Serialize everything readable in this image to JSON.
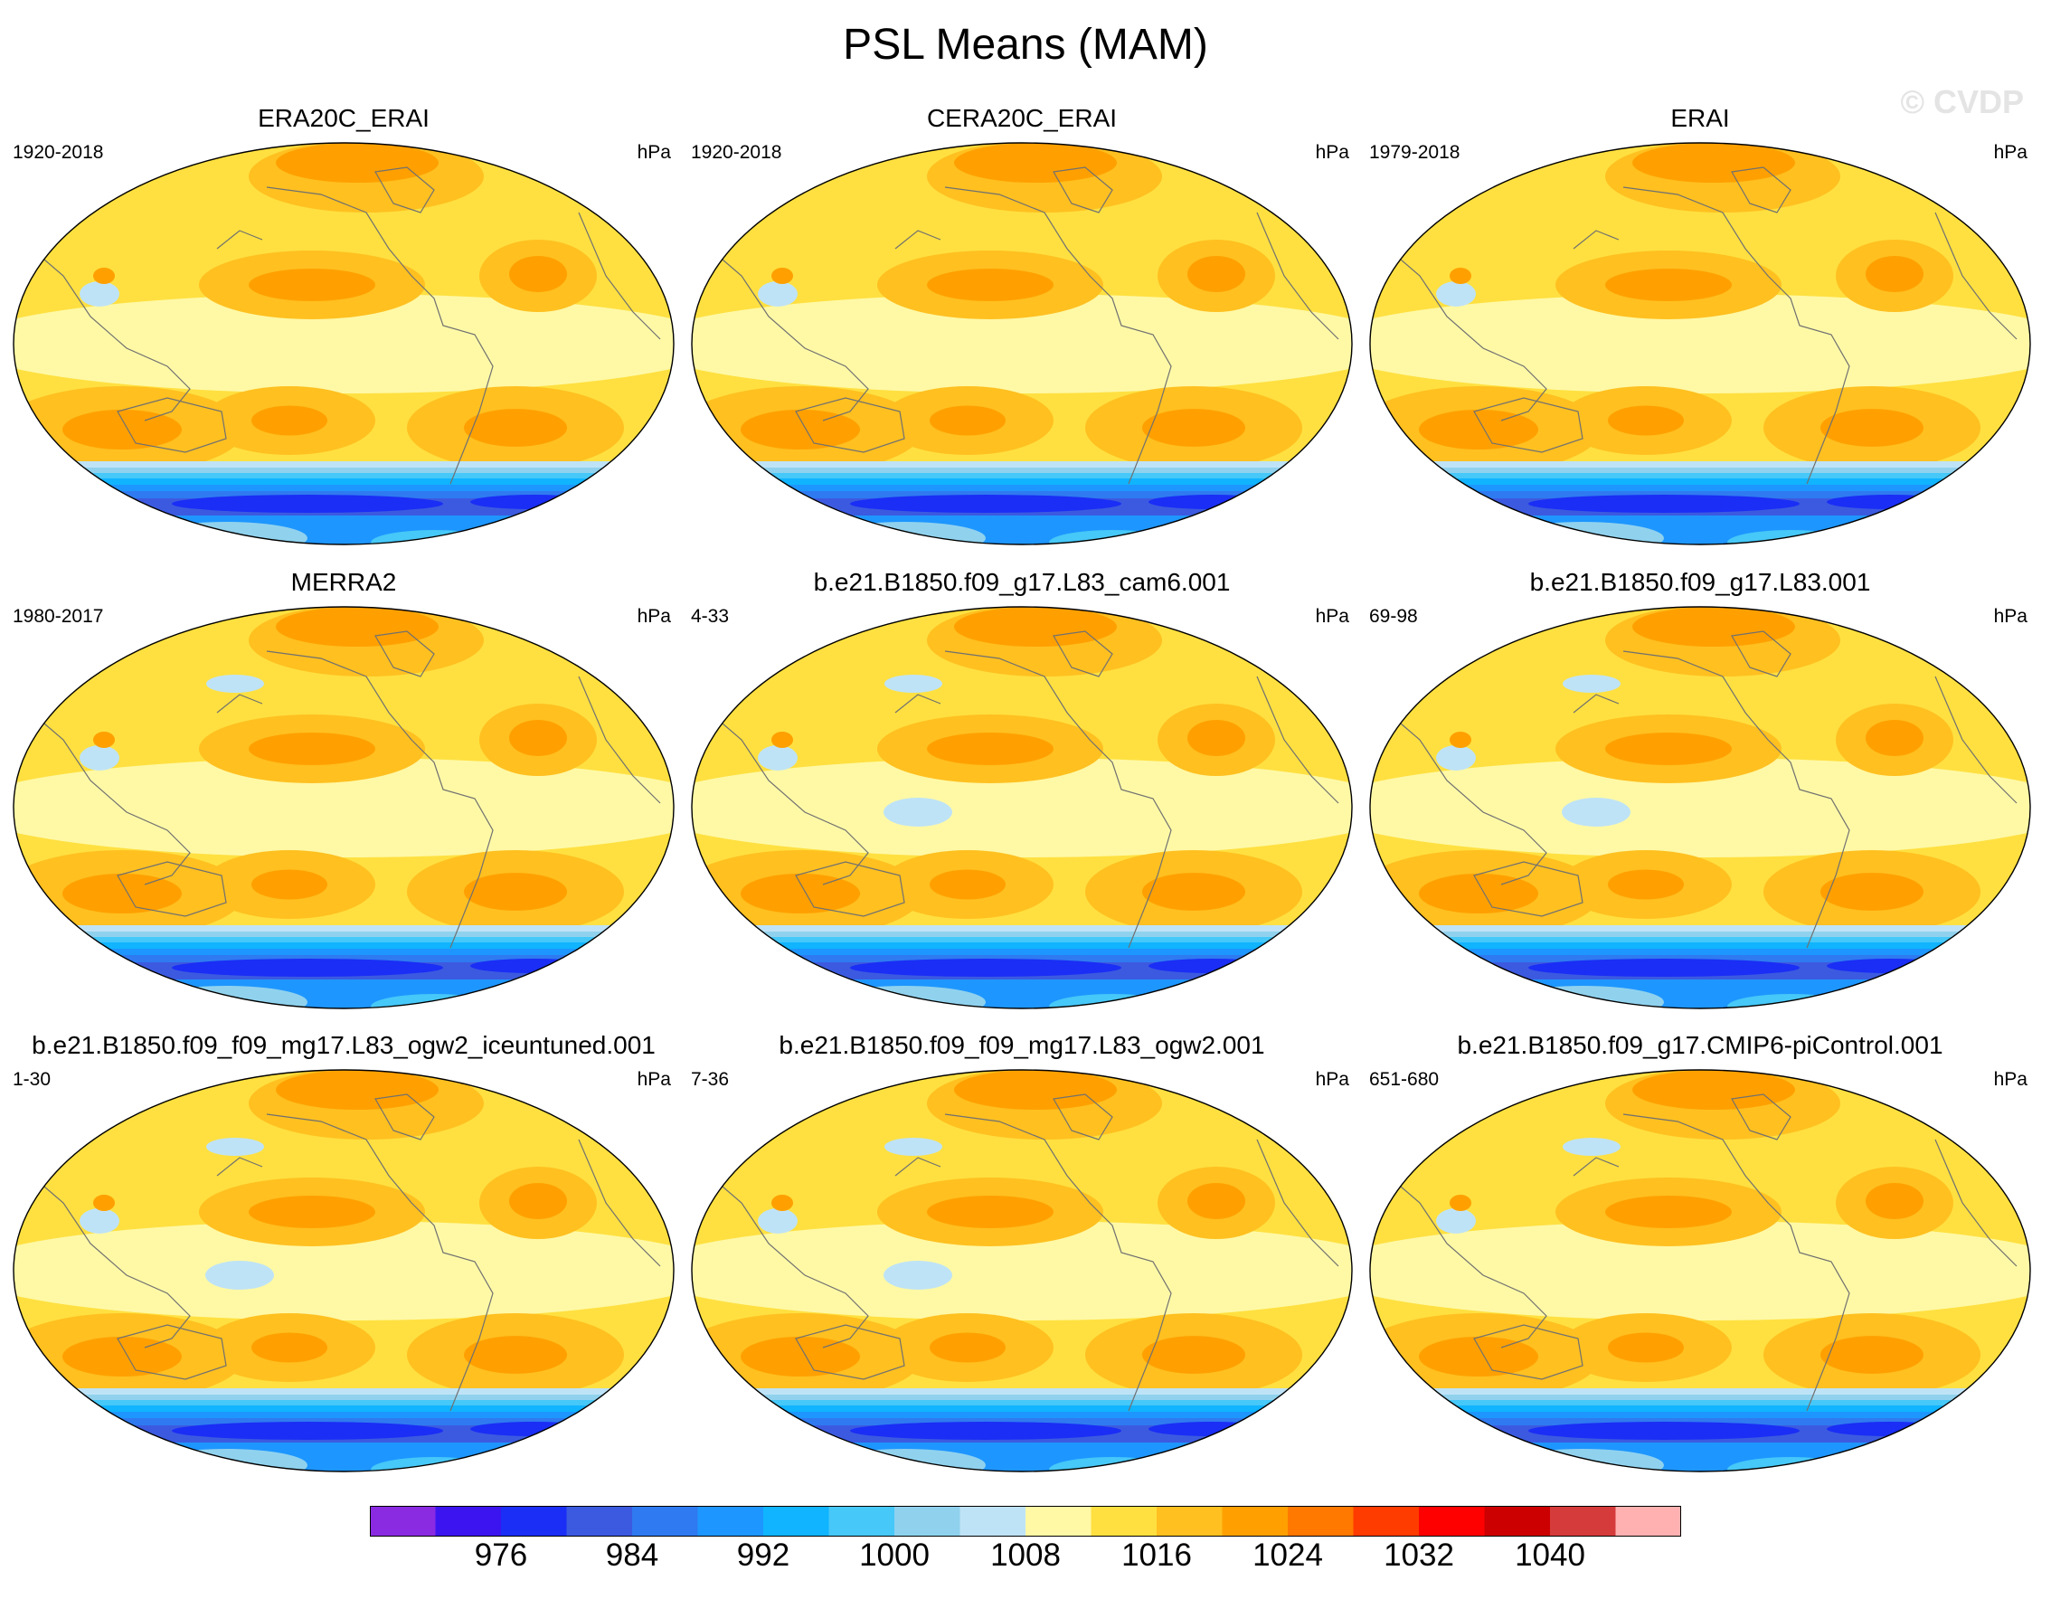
{
  "title": "PSL Means (MAM)",
  "watermark": "© CVDP",
  "panels": [
    {
      "name": "ERA20C_ERAI",
      "years": "1920-2018",
      "units": "hPa"
    },
    {
      "name": "CERA20C_ERAI",
      "years": "1920-2018",
      "units": "hPa"
    },
    {
      "name": "ERAI",
      "years": "1979-2018",
      "units": "hPa"
    },
    {
      "name": "MERRA2",
      "years": "1980-2017",
      "units": "hPa"
    },
    {
      "name": "b.e21.B1850.f09_g17.L83_cam6.001",
      "years": "4-33",
      "units": "hPa"
    },
    {
      "name": "b.e21.B1850.f09_g17.L83.001",
      "years": "69-98",
      "units": "hPa"
    },
    {
      "name": "b.e21.B1850.f09_f09_mg17.L83_ogw2_iceuntuned.001",
      "years": "1-30",
      "units": "hPa"
    },
    {
      "name": "b.e21.B1850.f09_f09_mg17.L83_ogw2.001",
      "years": "7-36",
      "units": "hPa"
    },
    {
      "name": "b.e21.B1850.f09_g17.CMIP6-piControl.001",
      "years": "651-680",
      "units": "hPa"
    }
  ],
  "colorbar": {
    "colors": [
      "#8a2be2",
      "#3c14f0",
      "#1a2ef5",
      "#3c5ae0",
      "#2f7af0",
      "#1e96ff",
      "#10b4ff",
      "#46c8f8",
      "#90d2ee",
      "#bfe3f6",
      "#fff9a6",
      "#ffe040",
      "#ffc020",
      "#ffa000",
      "#ff7800",
      "#ff3c00",
      "#ff0000",
      "#cc0000",
      "#d63b3b",
      "#ffb0b0"
    ],
    "labels": [
      "976",
      "984",
      "992",
      "1000",
      "1008",
      "1016",
      "1024",
      "1032",
      "1040"
    ]
  }
}
